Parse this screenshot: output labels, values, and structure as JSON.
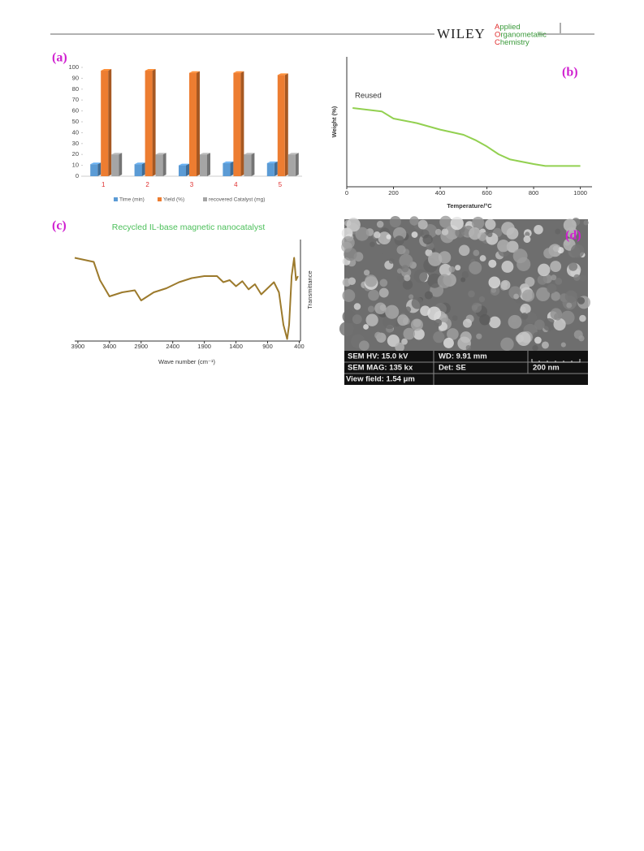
{
  "header": {
    "publisher": "WILEY",
    "journal": [
      "Applied",
      "Organometallic",
      "Chemistry"
    ]
  },
  "chart_data": [
    {
      "type": "bar",
      "panel_label": "(a)",
      "categories": [
        "1",
        "2",
        "3",
        "4",
        "5"
      ],
      "series": [
        {
          "name": "Time (min)",
          "color": "#5b9bd5",
          "values": [
            11,
            11,
            10,
            12,
            12
          ]
        },
        {
          "name": "Yield (%)",
          "color": "#ed7d31",
          "values": [
            97,
            97,
            95,
            95,
            93
          ]
        },
        {
          "name": "recovered Catalyst (mg)",
          "color": "#a5a5a5",
          "values": [
            20,
            20,
            20,
            20,
            20
          ]
        }
      ],
      "ylim": [
        0,
        100
      ],
      "yticks": [
        0,
        10,
        20,
        30,
        40,
        50,
        60,
        70,
        80,
        90,
        100
      ],
      "category_color": "#e03030",
      "legend": "bottom"
    },
    {
      "type": "line",
      "panel_label": "(b)",
      "annotation": "Reused",
      "x_label": "Temperature/°C",
      "y_label": "Weight (%)",
      "color": "#92d050",
      "x": [
        25,
        150,
        200,
        300,
        400,
        500,
        550,
        600,
        650,
        700,
        800,
        850,
        1000
      ],
      "values": [
        60.6,
        58,
        52.5,
        49,
        44,
        40,
        36,
        31,
        25,
        21,
        17.5,
        16,
        16
      ],
      "xlim": [
        0,
        1050
      ],
      "xticks": [
        0,
        200,
        400,
        600,
        800,
        1000
      ],
      "ylim": [
        0,
        100
      ]
    },
    {
      "type": "line",
      "panel_label": "(c)",
      "title": "Recycled IL-base magnetic nanocatalyst",
      "x_label": "Wave number (cm⁻¹)",
      "y_label": "Transmittance",
      "color": "#9c7a2c",
      "x": [
        3950,
        3650,
        3550,
        3400,
        3200,
        3000,
        2900,
        2700,
        2500,
        2300,
        2100,
        1900,
        1700,
        1600,
        1500,
        1400,
        1300,
        1200,
        1100,
        1000,
        900,
        800,
        720,
        650,
        590,
        560,
        520,
        480,
        450,
        420
      ],
      "values": [
        82,
        78,
        60,
        44,
        48,
        50,
        40,
        48,
        52,
        58,
        62,
        64,
        64,
        58,
        60,
        54,
        59,
        51,
        56,
        46,
        52,
        58,
        48,
        16,
        2,
        16,
        64,
        82,
        60,
        64
      ],
      "xlim": [
        3950,
        380
      ],
      "xticks": [
        3900,
        3400,
        2900,
        2400,
        1900,
        1400,
        900,
        400
      ],
      "ylim": [
        0,
        100
      ]
    }
  ],
  "sem_image": {
    "panel_label": "(d)",
    "info": [
      [
        "SEM HV: 15.0 kV",
        "WD: 9.91 mm"
      ],
      [
        "SEM MAG: 135 kx",
        "Det: SE",
        "200 nm"
      ],
      [
        "View field: 1.54 μm"
      ]
    ]
  }
}
